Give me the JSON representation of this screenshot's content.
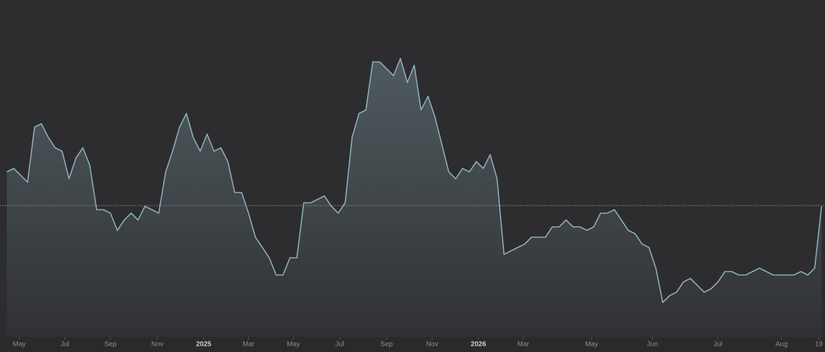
{
  "chart_data": {
    "type": "area",
    "color": "#8fb0ba",
    "xlim": [
      0,
      118
    ],
    "ylim": [
      0,
      490
    ],
    "reference": 191,
    "values": [
      240,
      245,
      235,
      225,
      305,
      310,
      290,
      275,
      270,
      230,
      260,
      275,
      250,
      185,
      185,
      180,
      155,
      170,
      180,
      170,
      190,
      185,
      180,
      240,
      270,
      305,
      325,
      290,
      270,
      295,
      270,
      275,
      255,
      210,
      210,
      180,
      145,
      130,
      115,
      90,
      90,
      115,
      115,
      195,
      195,
      200,
      205,
      190,
      180,
      195,
      290,
      325,
      330,
      400,
      400,
      390,
      380,
      405,
      370,
      395,
      330,
      350,
      320,
      280,
      240,
      230,
      245,
      240,
      255,
      245,
      265,
      230,
      120,
      125,
      130,
      135,
      145,
      145,
      145,
      160,
      160,
      170,
      160,
      160,
      155,
      160,
      180,
      180,
      185,
      170,
      155,
      150,
      135,
      130,
      100,
      50,
      60,
      65,
      80,
      85,
      75,
      65,
      70,
      80,
      95,
      95,
      90,
      90,
      95,
      100,
      95,
      90,
      90,
      90,
      90,
      95,
      90,
      100,
      190
    ],
    "xticks": [
      {
        "value": 1.8,
        "label": "May"
      },
      {
        "value": 8.4,
        "label": "Jul"
      },
      {
        "value": 15,
        "label": "Sep"
      },
      {
        "value": 21.8,
        "label": "Nov"
      },
      {
        "value": 28.5,
        "label": "2025"
      },
      {
        "value": 35,
        "label": "Mar"
      },
      {
        "value": 41.5,
        "label": "May"
      },
      {
        "value": 48.2,
        "label": "Jul"
      },
      {
        "value": 55,
        "label": "Sep"
      },
      {
        "value": 61.6,
        "label": "Nov"
      },
      {
        "value": 68.3,
        "label": "2026"
      },
      {
        "value": 74.8,
        "label": "Mar"
      },
      {
        "value": 84.7,
        "label": "May"
      },
      {
        "value": 93.5,
        "label": "Jun"
      },
      {
        "value": 103,
        "label": "Jul"
      },
      {
        "value": 112.2,
        "label": "Aug"
      },
      {
        "value": 117.6,
        "label": "19"
      }
    ]
  }
}
